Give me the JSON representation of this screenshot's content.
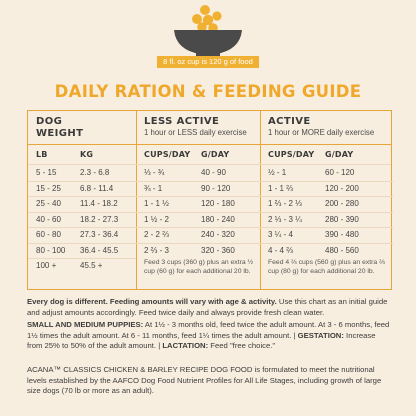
{
  "banner": "8 fl. oz cup is 120 g of food",
  "title": "DAILY RATION & FEEDING GUIDE",
  "table": {
    "dog_weight": [
      "DOG",
      "WEIGHT"
    ],
    "less_active": {
      "title": "LESS ACTIVE",
      "subtitle": "1 hour or LESS daily exercise"
    },
    "active": {
      "title": "ACTIVE",
      "subtitle": "1 hour or MORE daily exercise"
    },
    "columns": [
      "LB",
      "KG",
      "CUPS/DAY",
      "G/DAY",
      "CUPS/DAY",
      "G/DAY"
    ],
    "rows": [
      [
        "5 - 15",
        "2.3 - 6.8",
        "⅓ - ¾",
        "40 - 90",
        "½ - 1",
        "60 - 120"
      ],
      [
        "15 - 25",
        "6.8 - 11.4",
        "¾ - 1",
        "90 - 120",
        "1 - 1 ⅔",
        "120 - 200"
      ],
      [
        "25 - 40",
        "11.4 - 18.2",
        "1 - 1 ½",
        "120 - 180",
        "1 ⅔ - 2 ⅓",
        "200 - 280"
      ],
      [
        "40 - 60",
        "18.2 - 27.3",
        "1 ½ - 2",
        "180 - 240",
        "2 ⅓ - 3 ¼",
        "280 - 390"
      ],
      [
        "60 - 80",
        "27.3 - 36.4",
        "2 - 2 ⅔",
        "240 - 320",
        "3 ¼ - 4",
        "390 - 480"
      ],
      [
        "80 - 100",
        "36.4 - 45.5",
        "2 ⅔ - 3",
        "320 - 360",
        "4 - 4 ⅔",
        "480 - 560"
      ],
      [
        "100 +",
        "45.5 +",
        "",
        "",
        "",
        ""
      ]
    ],
    "less_note": "Feed 3 cups (360 g) plus an extra ½ cup (60 g) for each additional 20 lb.",
    "active_note": "Feed 4 ⅔ cups (560 g) plus an extra ⅔ cup (80 g) for each additional 20 lb."
  },
  "footer": {
    "p1_bold": "Every dog is different. Feeding amounts will vary with age & activity.",
    "p1_text": " Use this chart as an initial guide and adjust amounts accordingly. Feed twice daily and always provide fresh clean water.",
    "p2_bold1": "SMALL AND MEDIUM PUPPIES:",
    "p2_text1": " At 1½ - 3 months old, feed twice the adult amount. At 3 - 6 months, feed 1½ times the adult amount. At 6 - 11 months, feed 1¼ times the adult amount. | ",
    "p2_bold2": "GESTATION:",
    "p2_text2": " Increase from 25% to 50% of the adult amount. | ",
    "p2_bold3": "LACTATION:",
    "p2_text3": " Feed \"free choice.\"",
    "p3": "ACANA™ CLASSICS CHICKEN & BARLEY RECIPE DOG FOOD is formulated to meet the nutritional levels established by the AAFCO Dog Food Nutrient Profiles for All Life Stages, including growth of large size dogs (70 lb or more as an adult)."
  },
  "colors": {
    "accent": "#f0a82c",
    "bowl": "#4a4a4a",
    "background": "#f8eedf"
  }
}
